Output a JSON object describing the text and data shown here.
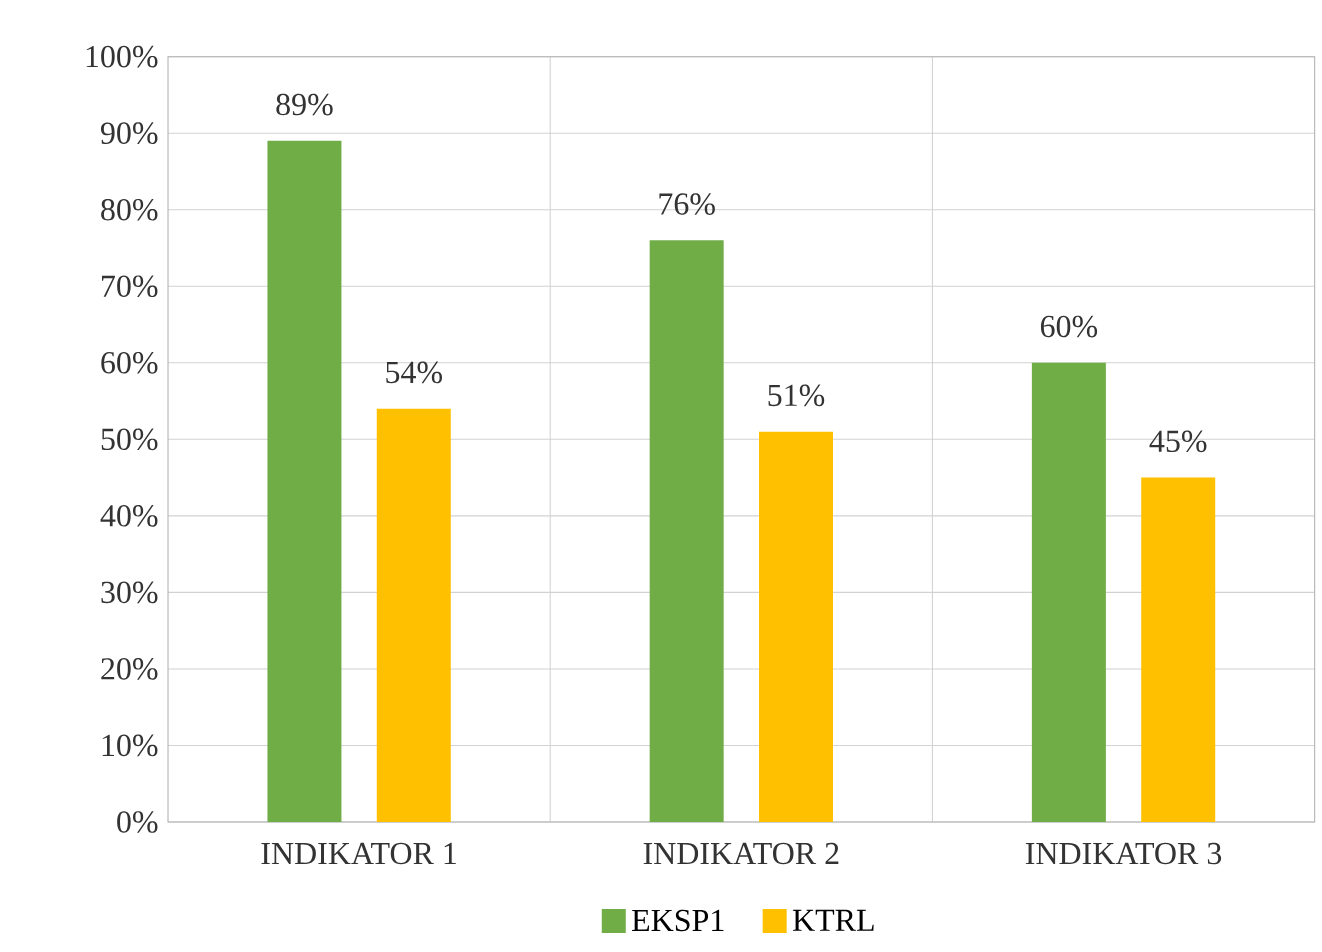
{
  "chart_data": {
    "type": "bar",
    "categories": [
      "INDIKATOR 1",
      "INDIKATOR 2",
      "INDIKATOR 3"
    ],
    "series": [
      {
        "name": "EKSP1",
        "color": "#70ad47",
        "values": [
          89,
          76,
          60
        ],
        "value_labels": [
          "89%",
          "76%",
          "60%"
        ]
      },
      {
        "name": "KTRL",
        "color": "#ffc000",
        "values": [
          54,
          51,
          45
        ],
        "value_labels": [
          "54%",
          "51%",
          "45%"
        ]
      }
    ],
    "ylim": [
      0,
      100
    ],
    "yticks": [
      {
        "value": 0,
        "label": "0%"
      },
      {
        "value": 10,
        "label": "10%"
      },
      {
        "value": 20,
        "label": "20%"
      },
      {
        "value": 30,
        "label": "30%"
      },
      {
        "value": 40,
        "label": "40%"
      },
      {
        "value": 50,
        "label": "50%"
      },
      {
        "value": 60,
        "label": "60%"
      },
      {
        "value": 70,
        "label": "70%"
      },
      {
        "value": 80,
        "label": "80%"
      },
      {
        "value": 90,
        "label": "90%"
      },
      {
        "value": 100,
        "label": "100%"
      }
    ],
    "grid": true,
    "legend": "bottom"
  }
}
